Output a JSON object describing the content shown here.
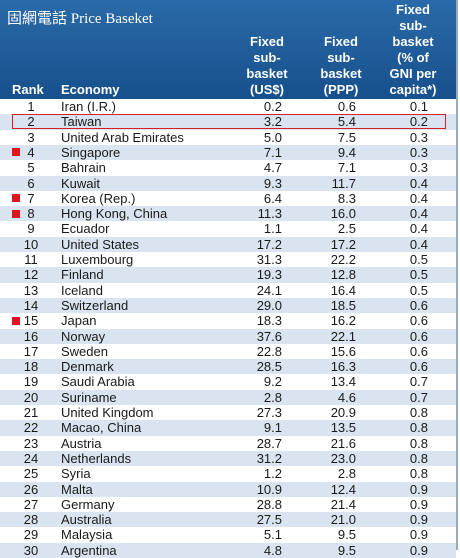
{
  "header": {
    "title": "固網電話 Price Baseket",
    "columns": [
      [
        "Rank"
      ],
      [
        "Economy"
      ],
      [
        "Fixed",
        "sub-",
        "basket",
        "(US$)"
      ],
      [
        "Fixed",
        "sub-",
        "basket",
        "(PPP)"
      ],
      [
        "Fixed",
        "sub-",
        "basket",
        "(% of",
        "GNI per",
        "capita*)"
      ]
    ]
  },
  "table": {
    "rows": [
      {
        "cells": [
          "1",
          "Iran (I.R.)",
          "0.2",
          "0.6",
          "0.1"
        ]
      },
      {
        "cells": [
          "2",
          "Taiwan",
          "3.2",
          "5.4",
          "0.2"
        ],
        "highlight": true
      },
      {
        "cells": [
          "3",
          "United Arab Emirates",
          "5.0",
          "7.5",
          "0.3"
        ]
      },
      {
        "cells": [
          "4",
          "Singapore",
          "7.1",
          "9.4",
          "0.3"
        ],
        "marker": true
      },
      {
        "cells": [
          "5",
          "Bahrain",
          "4.7",
          "7.1",
          "0.3"
        ]
      },
      {
        "cells": [
          "6",
          "Kuwait",
          "9.3",
          "11.7",
          "0.4"
        ]
      },
      {
        "cells": [
          "7",
          "Korea (Rep.)",
          "6.4",
          "8.3",
          "0.4"
        ],
        "marker": true
      },
      {
        "cells": [
          "8",
          "Hong Kong, China",
          "11.3",
          "16.0",
          "0.4"
        ],
        "marker": true
      },
      {
        "cells": [
          "9",
          "Ecuador",
          "1.1",
          "2.5",
          "0.4"
        ]
      },
      {
        "cells": [
          "10",
          "United States",
          "17.2",
          "17.2",
          "0.4"
        ]
      },
      {
        "cells": [
          "11",
          "Luxembourg",
          "31.3",
          "22.2",
          "0.5"
        ]
      },
      {
        "cells": [
          "12",
          "Finland",
          "19.3",
          "12.8",
          "0.5"
        ]
      },
      {
        "cells": [
          "13",
          "Iceland",
          "24.1",
          "16.4",
          "0.5"
        ]
      },
      {
        "cells": [
          "14",
          "Switzerland",
          "29.0",
          "18.5",
          "0.6"
        ]
      },
      {
        "cells": [
          "15",
          "Japan",
          "18.3",
          "16.2",
          "0.6"
        ],
        "marker": true
      },
      {
        "cells": [
          "16",
          "Norway",
          "37.6",
          "22.1",
          "0.6"
        ]
      },
      {
        "cells": [
          "17",
          "Sweden",
          "22.8",
          "15.6",
          "0.6"
        ]
      },
      {
        "cells": [
          "18",
          "Denmark",
          "28.5",
          "16.3",
          "0.6"
        ]
      },
      {
        "cells": [
          "19",
          "Saudi Arabia",
          "9.2",
          "13.4",
          "0.7"
        ]
      },
      {
        "cells": [
          "20",
          "Suriname",
          "2.8",
          "4.6",
          "0.7"
        ]
      },
      {
        "cells": [
          "21",
          "United Kingdom",
          "27.3",
          "20.9",
          "0.8"
        ]
      },
      {
        "cells": [
          "22",
          "Macao, China",
          "9.1",
          "13.5",
          "0.8"
        ]
      },
      {
        "cells": [
          "23",
          "Austria",
          "28.7",
          "21.6",
          "0.8"
        ]
      },
      {
        "cells": [
          "24",
          "Netherlands",
          "31.2",
          "23.0",
          "0.8"
        ]
      },
      {
        "cells": [
          "25",
          "Syria",
          "1.2",
          "2.8",
          "0.8"
        ]
      },
      {
        "cells": [
          "26",
          "Malta",
          "10.9",
          "12.4",
          "0.9"
        ]
      },
      {
        "cells": [
          "27",
          "Germany",
          "28.8",
          "21.4",
          "0.9"
        ]
      },
      {
        "cells": [
          "28",
          "Australia",
          "27.5",
          "21.0",
          "0.9"
        ]
      },
      {
        "cells": [
          "29",
          "Malaysia",
          "5.1",
          "9.5",
          "0.9"
        ]
      },
      {
        "cells": [
          "30",
          "Argentina",
          "4.8",
          "9.5",
          "0.9"
        ]
      }
    ]
  }
}
